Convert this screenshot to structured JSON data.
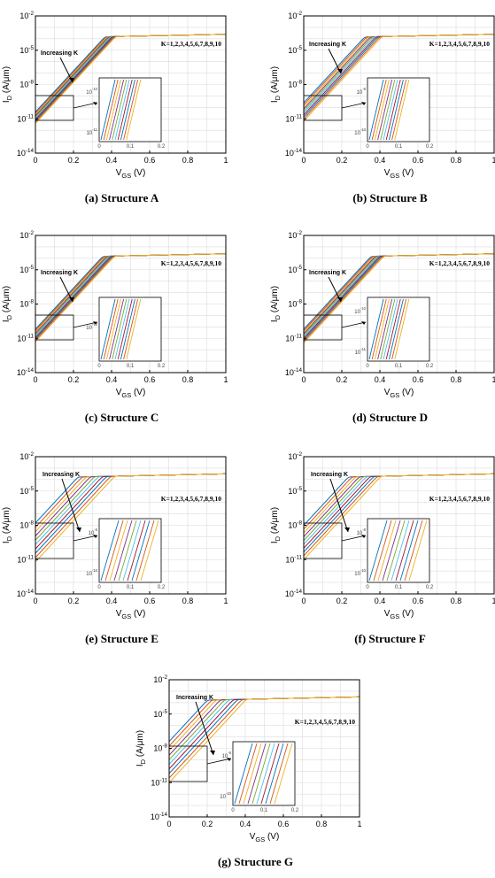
{
  "figure": {
    "axis": {
      "xlabel_main": "V",
      "xlabel_sub": "GS",
      "xlabel_unit": " (V)",
      "ylabel_main": "I",
      "ylabel_sub": "D",
      "ylabel_unit": " (A/",
      "ylabel_mu": "μ",
      "ylabel_end": "m)",
      "x_ticks": [
        "0",
        "0.2",
        "0.4",
        "0.6",
        "0.8",
        "1"
      ],
      "y_ticks": [
        {
          "base": "10",
          "exp": "-2"
        },
        {
          "base": "10",
          "exp": "-5"
        },
        {
          "base": "10",
          "exp": "-8"
        },
        {
          "base": "10",
          "exp": "-11"
        },
        {
          "base": "10",
          "exp": "-14"
        }
      ],
      "inset_x_ticks": [
        "0",
        "0.1",
        "0.2"
      ]
    },
    "k_label": "K=1,2,3,4,5,6,7,8,9,10",
    "increasing_label": "Increasing K",
    "colors": [
      "#0072bd",
      "#d95319",
      "#edb120",
      "#7e2f8e",
      "#77ac30",
      "#4dbeee",
      "#a2142f",
      "#0072bd",
      "#d95319",
      "#edb120"
    ]
  },
  "chart_data": [
    {
      "type": "line",
      "caption": "(a) Structure A",
      "xlabel": "VGS (V)",
      "ylabel": "ID (A/μm)",
      "xlim": [
        0,
        1
      ],
      "ylim_log10": [
        -14,
        -2
      ],
      "x_scale": "linear",
      "y_scale": "log",
      "grid": true,
      "series_note_k": [
        1,
        2,
        3,
        4,
        5,
        6,
        7,
        8,
        9,
        10
      ],
      "log10_id_at_vgs0_k1": -10.4,
      "log10_id_at_vgs0_k10": -11.4,
      "log10_id_at_vgs1": -3.6,
      "inset": {
        "xlim": [
          0,
          0.2
        ],
        "y_ticks": [
          {
            "base": "10",
            "exp": "-10"
          },
          {
            "base": "10",
            "exp": "-11"
          }
        ]
      }
    },
    {
      "type": "line",
      "caption": "(b) Structure B",
      "xlabel": "VGS (V)",
      "ylabel": "ID (A/μm)",
      "xlim": [
        0,
        1
      ],
      "ylim_log10": [
        -14,
        -2
      ],
      "x_scale": "linear",
      "y_scale": "log",
      "grid": true,
      "series_note_k": [
        1,
        2,
        3,
        4,
        5,
        6,
        7,
        8,
        9,
        10
      ],
      "log10_id_at_vgs0_k1": -9.6,
      "log10_id_at_vgs0_k10": -11.2,
      "log10_id_at_vgs1": -3.6,
      "inset": {
        "xlim": [
          0,
          0.2
        ],
        "y_ticks": [
          {
            "base": "10",
            "exp": "-8"
          },
          {
            "base": "10",
            "exp": "-10"
          }
        ]
      }
    },
    {
      "type": "line",
      "caption": "(c) Structure C",
      "xlabel": "VGS (V)",
      "ylabel": "ID (A/μm)",
      "xlim": [
        0,
        1
      ],
      "ylim_log10": [
        -14,
        -2
      ],
      "x_scale": "linear",
      "y_scale": "log",
      "grid": true,
      "series_note_k": [
        1,
        2,
        3,
        4,
        5,
        6,
        7,
        8,
        9,
        10
      ],
      "log10_id_at_vgs0_k1": -10.2,
      "log10_id_at_vgs0_k10": -11.3,
      "log10_id_at_vgs1": -3.6,
      "inset": {
        "xlim": [
          0,
          0.2
        ],
        "y_ticks": [
          {
            "base": "10",
            "exp": "-10"
          }
        ]
      }
    },
    {
      "type": "line",
      "caption": "(d) Structure D",
      "xlabel": "VGS (V)",
      "ylabel": "ID (A/μm)",
      "xlim": [
        0,
        1
      ],
      "ylim_log10": [
        -14,
        -2
      ],
      "x_scale": "linear",
      "y_scale": "log",
      "grid": true,
      "series_note_k": [
        1,
        2,
        3,
        4,
        5,
        6,
        7,
        8,
        9,
        10
      ],
      "log10_id_at_vgs0_k1": -10.2,
      "log10_id_at_vgs0_k10": -11.4,
      "log10_id_at_vgs1": -3.6,
      "inset": {
        "xlim": [
          0,
          0.2
        ],
        "y_ticks": [
          {
            "base": "10",
            "exp": "-10"
          },
          {
            "base": "10",
            "exp": "-11"
          }
        ]
      }
    },
    {
      "type": "line",
      "caption": "(e) Structure E",
      "xlabel": "VGS (V)",
      "ylabel": "ID (A/μm)",
      "xlim": [
        0,
        1
      ],
      "ylim_log10": [
        -14,
        -2
      ],
      "x_scale": "linear",
      "y_scale": "log",
      "grid": true,
      "series_note_k": [
        1,
        2,
        3,
        4,
        5,
        6,
        7,
        8,
        9,
        10
      ],
      "log10_id_at_vgs0_k1": -7.8,
      "log10_id_at_vgs0_k10": -11.2,
      "log10_id_at_vgs1": -3.5,
      "inset": {
        "xlim": [
          0,
          0.2
        ],
        "y_ticks": [
          {
            "base": "10",
            "exp": "-8"
          },
          {
            "base": "10",
            "exp": "-10"
          }
        ]
      }
    },
    {
      "type": "line",
      "caption": "(f) Structure F",
      "xlabel": "VGS (V)",
      "ylabel": "ID (A/μm)",
      "xlim": [
        0,
        1
      ],
      "ylim_log10": [
        -14,
        -2
      ],
      "x_scale": "linear",
      "y_scale": "log",
      "grid": true,
      "series_note_k": [
        1,
        2,
        3,
        4,
        5,
        6,
        7,
        8,
        9,
        10
      ],
      "log10_id_at_vgs0_k1": -8.0,
      "log10_id_at_vgs0_k10": -11.0,
      "log10_id_at_vgs1": -3.5,
      "inset": {
        "xlim": [
          0,
          0.2
        ],
        "y_ticks": [
          {
            "base": "10",
            "exp": "-8"
          },
          {
            "base": "10",
            "exp": "-10"
          }
        ]
      }
    },
    {
      "type": "line",
      "caption": "(g) Structure G",
      "xlabel": "VGS (V)",
      "ylabel": "ID (A/μm)",
      "xlim": [
        0,
        1
      ],
      "ylim_log10": [
        -14,
        -2
      ],
      "x_scale": "linear",
      "y_scale": "log",
      "grid": true,
      "series_note_k": [
        1,
        2,
        3,
        4,
        5,
        6,
        7,
        8,
        9,
        10
      ],
      "log10_id_at_vgs0_k1": -7.4,
      "log10_id_at_vgs0_k10": -11.0,
      "log10_id_at_vgs1": -3.5,
      "inset": {
        "xlim": [
          0,
          0.2
        ],
        "y_ticks": [
          {
            "base": "10",
            "exp": "-8"
          },
          {
            "base": "10",
            "exp": "-10"
          }
        ]
      }
    }
  ]
}
